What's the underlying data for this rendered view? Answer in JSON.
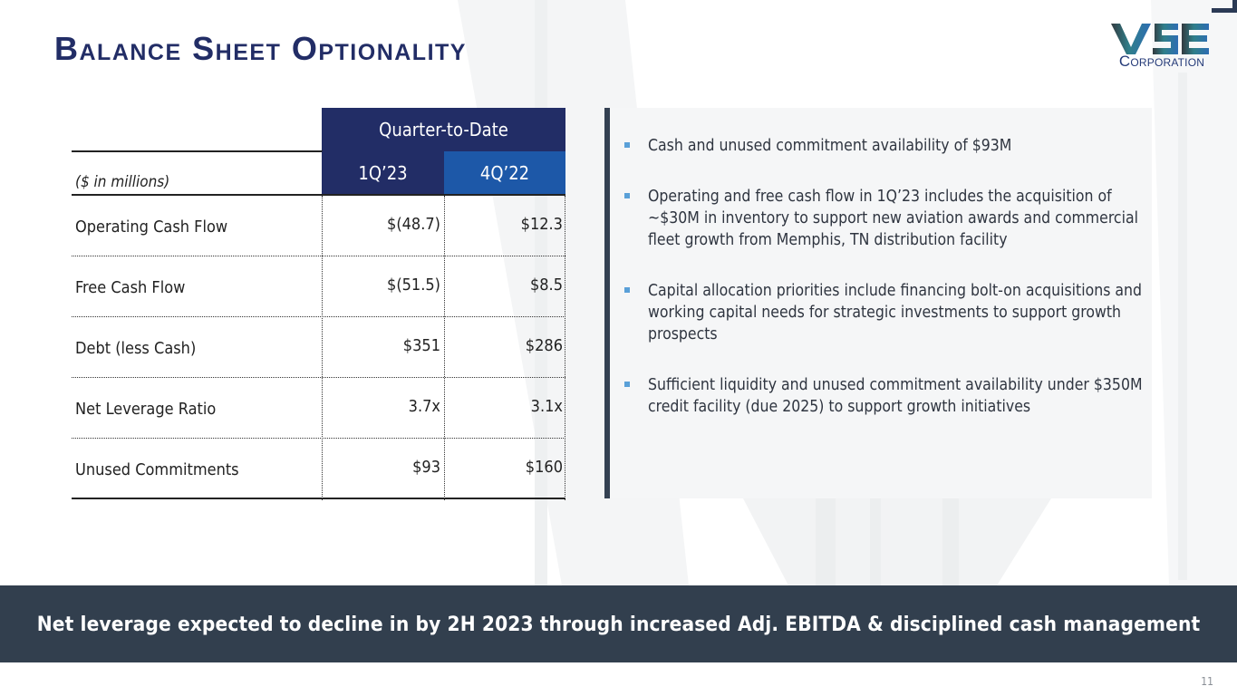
{
  "slide": {
    "title": "Balance Sheet Optionality",
    "page_number": "11"
  },
  "logo": {
    "mark": "VSE",
    "subtitle": "Corporation"
  },
  "table": {
    "group_header": "Quarter-to-Date",
    "units_label": "($ in millions)",
    "columns": [
      "1Q’23",
      "4Q’22"
    ],
    "rows": [
      {
        "label": "Operating Cash Flow",
        "values": [
          "$(48.7)",
          "$12.3"
        ]
      },
      {
        "label": "Free Cash Flow",
        "values": [
          "$(51.5)",
          "$8.5"
        ]
      },
      {
        "label": "Debt (less Cash)",
        "values": [
          "$351",
          "$286"
        ]
      },
      {
        "label": "Net Leverage Ratio",
        "values": [
          "3.7x",
          "3.1x"
        ]
      },
      {
        "label": "Unused Commitments",
        "values": [
          "$93",
          "$160"
        ]
      }
    ]
  },
  "bullets": [
    "Cash and unused commitment availability of $93M",
    "Operating and free cash flow in 1Q’23 includes the acquisition of ~$30M in inventory to support new aviation awards and commercial fleet growth from Memphis, TN distribution facility",
    "Capital allocation priorities include financing bolt-on acquisitions and working capital needs for strategic investments to support growth prospects",
    "Sufficient liquidity and unused commitment availability under $350M credit facility (due 2025) to support growth initiatives"
  ],
  "banner": {
    "text": "Net leverage expected to decline in by 2H 2023 through increased Adj. EBITDA & disciplined cash management"
  },
  "colors": {
    "title": "#222d66",
    "header_dark": "#222d66",
    "header_blue": "#1d58a8",
    "panel_border": "#344152",
    "bullet": "#5aa0d8",
    "banner": "#323f4e"
  }
}
